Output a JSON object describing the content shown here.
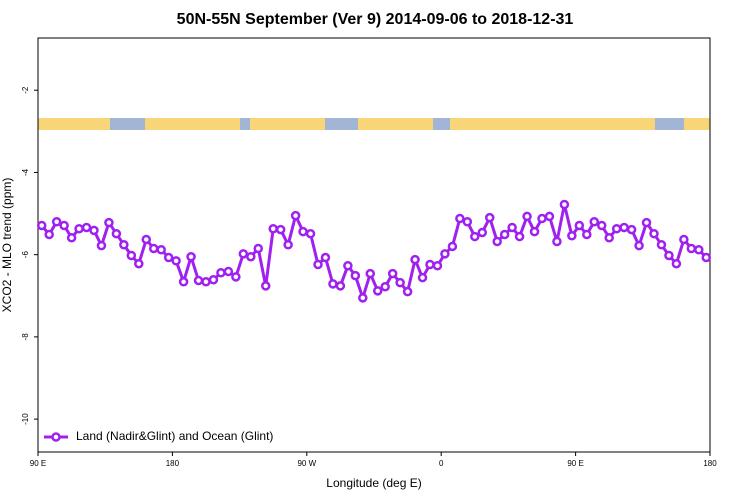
{
  "chart_data": {
    "type": "line",
    "title": "50N-55N September (Ver 9)   2014-09-06 to 2018-12-31",
    "xlabel": "Longitude (deg E)",
    "ylabel": "XCO2 - MLO trend (ppm)",
    "x": [
      92.5,
      97.5,
      102.5,
      107.5,
      112.5,
      117.5,
      122.5,
      127.5,
      132.5,
      137.5,
      142.5,
      147.5,
      152.5,
      157.5,
      162.5,
      167.5,
      172.5,
      177.5,
      182.5,
      187.5,
      192.5,
      197.5,
      202.5,
      207.5,
      212.5,
      217.5,
      222.5,
      227.5,
      232.5,
      237.5,
      242.5,
      247.5,
      252.5,
      257.5,
      262.5,
      267.5,
      272.5,
      277.5,
      282.5,
      287.5,
      292.5,
      297.5,
      302.5,
      307.5,
      312.5,
      317.5,
      322.5,
      327.5,
      332.5,
      337.5,
      342.5,
      347.5,
      352.5,
      357.5,
      362.5,
      367.5,
      372.5,
      377.5,
      382.5,
      387.5,
      392.5,
      397.5,
      402.5,
      407.5,
      412.5,
      417.5,
      422.5,
      427.5,
      432.5,
      437.5,
      442.5,
      447.5,
      452.5,
      457.5,
      462.5,
      467.5,
      472.5,
      477.5,
      482.5,
      487.5,
      492.5,
      497.5,
      502.5,
      507.5,
      512.5,
      517.5,
      522.5,
      527.5,
      532.5,
      537.5
    ],
    "series": [
      {
        "name": "Land (Nadir&Glint) and Ocean (Glint)",
        "color": "#a020f0",
        "values": [
          -5.29,
          -5.51,
          -5.2,
          -5.29,
          -5.59,
          -5.37,
          -5.34,
          -5.41,
          -5.78,
          -5.22,
          -5.49,
          -5.76,
          -6.02,
          -6.22,
          -5.63,
          -5.85,
          -5.88,
          -6.07,
          -6.15,
          -6.66,
          -6.05,
          -6.63,
          -6.66,
          -6.61,
          -6.44,
          -6.41,
          -6.54,
          -5.98,
          -6.05,
          -5.85,
          -6.76,
          -5.37,
          -5.39,
          -5.76,
          -5.05,
          -5.44,
          -5.49,
          -6.24,
          -6.07,
          -6.71,
          -6.76,
          -6.27,
          -6.51,
          -7.05,
          -6.46,
          -6.88,
          -6.78,
          -6.46,
          -6.68,
          -6.9,
          -6.12,
          -6.56,
          -6.24,
          -6.27,
          -5.98,
          -5.8,
          -5.12,
          -5.2,
          -5.56,
          -5.46,
          -5.1,
          -5.68,
          -5.51,
          -5.34,
          -5.56,
          -5.07,
          -5.44,
          -5.12,
          -5.07,
          -5.68,
          -4.78,
          -5.54,
          -5.29,
          -5.51,
          -5.2,
          -5.29,
          -5.59,
          -5.37,
          -5.34,
          -5.39,
          -5.78,
          -5.22,
          -5.49,
          -5.76,
          -6.02,
          -6.22,
          -5.63,
          -5.85,
          -5.88,
          -6.07
        ]
      }
    ],
    "xlim": [
      90,
      540
    ],
    "xticks": [
      {
        "value": 90,
        "label": "90 E"
      },
      {
        "value": 180,
        "label": "180"
      },
      {
        "value": 270,
        "label": "90 W"
      },
      {
        "value": 360,
        "label": "0"
      },
      {
        "value": 450,
        "label": "90 E"
      },
      {
        "value": 540,
        "label": "180"
      }
    ],
    "ylim": [
      -10.8,
      -0.73
    ],
    "yticks": [
      -2,
      -4,
      -6,
      -8,
      -10
    ],
    "legend": "bottom-left"
  }
}
